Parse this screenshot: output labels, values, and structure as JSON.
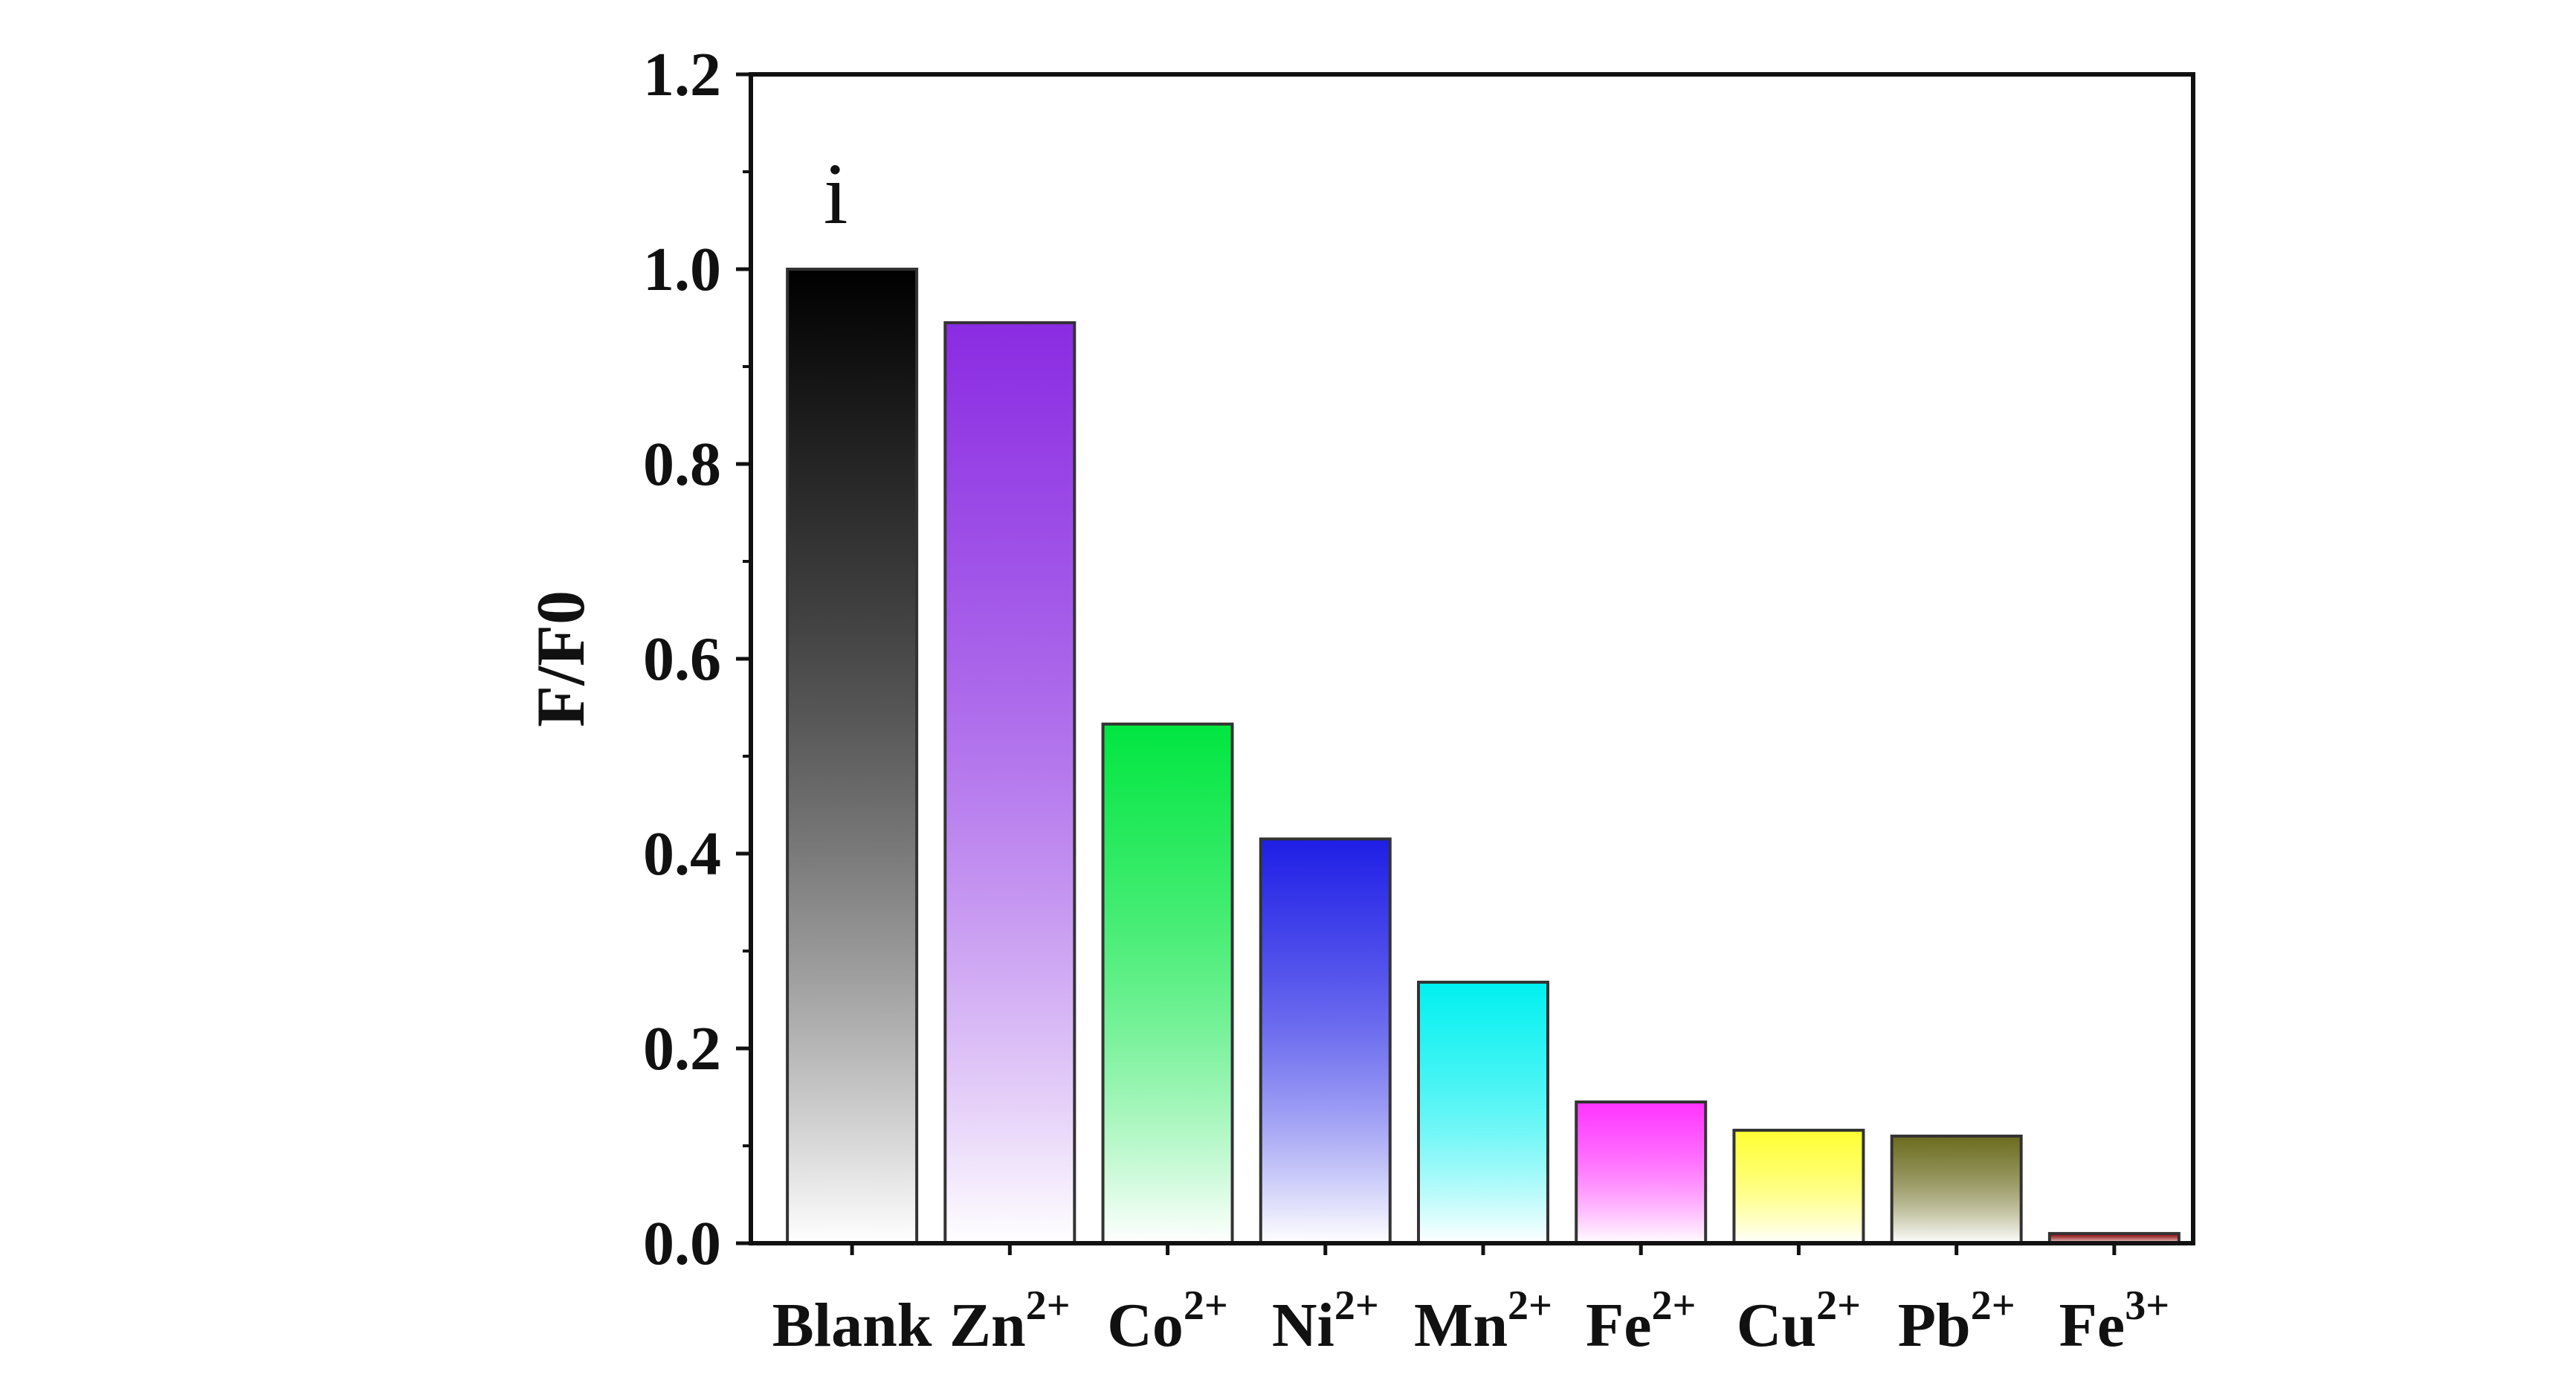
{
  "chart_data": {
    "type": "bar",
    "panel_label": "i",
    "ylabel": "F/F0",
    "xlabel": "",
    "ylim": [
      0,
      1.2
    ],
    "yticks": [
      "0.0",
      "0.2",
      "0.4",
      "0.6",
      "0.8",
      "1.0",
      "1.2"
    ],
    "grid": false,
    "categories": [
      {
        "base": "Blank",
        "sup": ""
      },
      {
        "base": "Zn",
        "sup": "2+"
      },
      {
        "base": "Co",
        "sup": "2+"
      },
      {
        "base": "Ni",
        "sup": "2+"
      },
      {
        "base": "Mn",
        "sup": "2+"
      },
      {
        "base": "Fe",
        "sup": "2+"
      },
      {
        "base": "Cu",
        "sup": "2+"
      },
      {
        "base": "Pb",
        "sup": "2+"
      },
      {
        "base": "Fe",
        "sup": "3+"
      }
    ],
    "values": [
      1.0,
      0.945,
      0.533,
      0.415,
      0.268,
      0.145,
      0.116,
      0.11,
      0.01
    ],
    "colors": [
      "#000000",
      "#8a2be2",
      "#00e640",
      "#1e1ee6",
      "#00f0f0",
      "#ff33ff",
      "#ffff33",
      "#6b6b1e",
      "#8b0000"
    ]
  }
}
